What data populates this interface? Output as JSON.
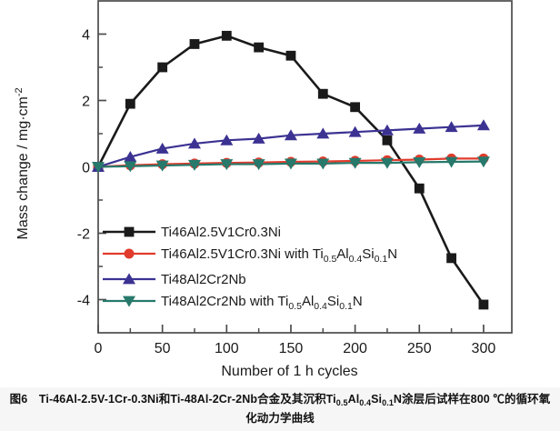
{
  "figure": {
    "caption_parts": [
      {
        "t": "图6　Ti-46Al-2.5V-1Cr-0.3Ni和Ti-48Al-2Cr-2Nb合金及其沉积Ti"
      },
      {
        "t": "0.5",
        "sub": true
      },
      {
        "t": "Al"
      },
      {
        "t": "0.4",
        "sub": true
      },
      {
        "t": "Si"
      },
      {
        "t": "0.1",
        "sub": true
      },
      {
        "t": "N涂层后试样在800 ℃的循环氧化动力学曲线"
      }
    ],
    "caption_plain": "图6 Ti-46Al-2.5V-1Cr-0.3Ni和Ti-48Al-2Cr-2Nb合金及其沉积Ti0.5Al0.4Si0.1N涂层后试样在800 ℃的循环氧化动力学曲线"
  },
  "chart_data": {
    "type": "line",
    "title": "",
    "xlabel": "Number of 1 h cycles",
    "ylabel_plain": "Mass change / mg·cm⁻²",
    "ylabel_parts": [
      {
        "t": "Mass change / mg·cm"
      },
      {
        "t": "-2",
        "sup": true
      }
    ],
    "x": [
      0,
      25,
      50,
      75,
      100,
      125,
      150,
      175,
      200,
      225,
      250,
      275,
      300
    ],
    "xlim": [
      0,
      322
    ],
    "ylim": [
      -5,
      5
    ],
    "x_ticks": [
      0,
      50,
      100,
      150,
      200,
      250,
      300
    ],
    "x_minor_ticks": [
      25,
      75,
      125,
      175,
      225,
      275
    ],
    "y_ticks": [
      4,
      2,
      0,
      -2,
      -4
    ],
    "y_minor_ticks": [
      3,
      1,
      -1,
      -3
    ],
    "grid": false,
    "legend_position": "inside lower-left",
    "axis_color": "#4c4c4c",
    "tick_label_color": "#1a1a1a",
    "series": [
      {
        "name": "Ti46Al2.5V1Cr0.3Ni",
        "name_parts": [
          {
            "t": "Ti46Al2.5V1Cr0.3Ni"
          }
        ],
        "marker": "square",
        "color": "#1a1a1a",
        "line_width": 2.6,
        "values": [
          0,
          1.9,
          3.0,
          3.7,
          3.95,
          3.6,
          3.35,
          2.2,
          1.8,
          0.8,
          -0.65,
          -2.75,
          -4.15
        ]
      },
      {
        "name": "Ti46Al2.5V1Cr0.3Ni with Ti0.5Al0.4Si0.1N",
        "name_parts": [
          {
            "t": "Ti46Al2.5V1Cr0.3Ni with Ti"
          },
          {
            "t": "0.5",
            "sub": true
          },
          {
            "t": "Al"
          },
          {
            "t": "0.4",
            "sub": true
          },
          {
            "t": "Si"
          },
          {
            "t": "0.1",
            "sub": true
          },
          {
            "t": "N"
          }
        ],
        "marker": "circle",
        "color": "#e13b2c",
        "line_width": 2.2,
        "values": [
          0,
          0.05,
          0.08,
          0.1,
          0.12,
          0.13,
          0.15,
          0.16,
          0.18,
          0.2,
          0.22,
          0.25,
          0.25
        ]
      },
      {
        "name": "Ti48Al2Cr2Nb",
        "name_parts": [
          {
            "t": "Ti48Al2Cr2Nb"
          }
        ],
        "marker": "triangle-up",
        "color": "#3b3292",
        "line_width": 2.2,
        "values": [
          0,
          0.3,
          0.55,
          0.7,
          0.8,
          0.85,
          0.95,
          1.0,
          1.05,
          1.1,
          1.15,
          1.2,
          1.25
        ]
      },
      {
        "name": "Ti48Al2Cr2Nb with Ti0.5Al0.4Si0.1N",
        "name_parts": [
          {
            "t": "Ti48Al2Cr2Nb with Ti"
          },
          {
            "t": "0.5",
            "sub": true
          },
          {
            "t": "Al"
          },
          {
            "t": "0.4",
            "sub": true
          },
          {
            "t": "Si"
          },
          {
            "t": "0.1",
            "sub": true
          },
          {
            "t": "N"
          }
        ],
        "marker": "triangle-down",
        "color": "#26796b",
        "line_width": 2.2,
        "values": [
          0,
          0.02,
          0.04,
          0.06,
          0.08,
          0.08,
          0.1,
          0.1,
          0.12,
          0.12,
          0.14,
          0.15,
          0.16
        ]
      }
    ]
  }
}
